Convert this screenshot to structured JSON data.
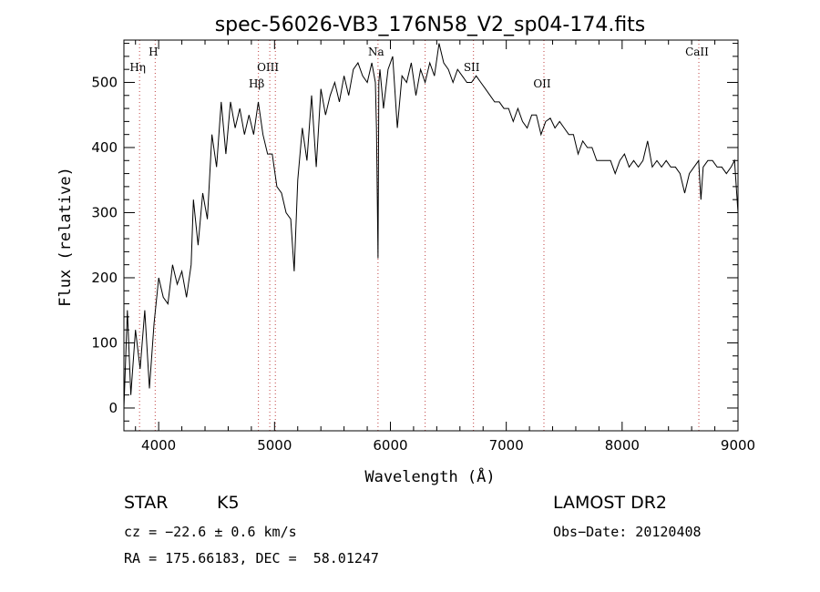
{
  "chart_data": {
    "type": "line",
    "title": "spec-56026-VB3_176N58_V2_sp04-174.fits",
    "xlabel": "Wavelength (Å)",
    "ylabel": "Flux (relative)",
    "xlim": [
      3700,
      9000
    ],
    "ylim": [
      -35,
      565
    ],
    "x_ticks": [
      4000,
      5000,
      6000,
      7000,
      8000,
      9000
    ],
    "y_ticks": [
      0,
      100,
      200,
      300,
      400,
      500
    ],
    "grid": false,
    "line_color": "#000000",
    "marker_color": "#c04040",
    "series": [
      {
        "x": [
          3700,
          3730,
          3760,
          3800,
          3840,
          3880,
          3920,
          3960,
          4000,
          4040,
          4080,
          4120,
          4160,
          4200,
          4240,
          4280,
          4300,
          4340,
          4380,
          4420,
          4460,
          4500,
          4540,
          4580,
          4620,
          4660,
          4700,
          4740,
          4780,
          4820,
          4860,
          4900,
          4940,
          4980,
          5020,
          5060,
          5100,
          5140,
          5170,
          5200,
          5240,
          5280,
          5320,
          5360,
          5400,
          5440,
          5480,
          5520,
          5560,
          5600,
          5640,
          5680,
          5720,
          5760,
          5800,
          5840,
          5870,
          5880,
          5893,
          5900,
          5910,
          5940,
          5980,
          6020,
          6060,
          6100,
          6140,
          6180,
          6220,
          6260,
          6300,
          6340,
          6380,
          6420,
          6460,
          6500,
          6540,
          6580,
          6620,
          6660,
          6700,
          6740,
          6780,
          6820,
          6860,
          6900,
          6940,
          6980,
          7020,
          7060,
          7100,
          7140,
          7180,
          7220,
          7260,
          7300,
          7340,
          7380,
          7420,
          7460,
          7500,
          7540,
          7580,
          7620,
          7660,
          7700,
          7740,
          7780,
          7820,
          7860,
          7900,
          7940,
          7980,
          8020,
          8060,
          8100,
          8140,
          8180,
          8220,
          8260,
          8300,
          8340,
          8380,
          8420,
          8460,
          8500,
          8540,
          8580,
          8620,
          8660,
          8680,
          8700,
          8740,
          8780,
          8820,
          8860,
          8900,
          8940,
          8970,
          9000
        ],
        "y": [
          0,
          150,
          20,
          120,
          60,
          150,
          30,
          130,
          200,
          170,
          160,
          220,
          190,
          210,
          170,
          220,
          320,
          250,
          330,
          290,
          420,
          370,
          470,
          390,
          470,
          430,
          460,
          420,
          450,
          420,
          470,
          420,
          390,
          390,
          340,
          330,
          300,
          290,
          210,
          350,
          430,
          380,
          480,
          370,
          490,
          450,
          480,
          500,
          470,
          510,
          480,
          520,
          530,
          510,
          500,
          530,
          500,
          430,
          230,
          500,
          520,
          460,
          520,
          540,
          430,
          510,
          500,
          530,
          480,
          520,
          500,
          530,
          510,
          560,
          530,
          520,
          500,
          520,
          510,
          500,
          500,
          510,
          500,
          490,
          480,
          470,
          470,
          460,
          460,
          440,
          460,
          440,
          430,
          450,
          450,
          420,
          440,
          445,
          430,
          440,
          430,
          420,
          420,
          390,
          410,
          400,
          400,
          380,
          380,
          380,
          380,
          360,
          380,
          390,
          370,
          380,
          370,
          380,
          410,
          370,
          380,
          370,
          380,
          370,
          370,
          360,
          330,
          360,
          370,
          380,
          320,
          370,
          380,
          380,
          370,
          370,
          360,
          370,
          380,
          300
        ]
      }
    ],
    "spectral_lines": [
      {
        "name": "Hη",
        "wavelength": 3835,
        "label_row": 2
      },
      {
        "name": "H",
        "wavelength": 3970,
        "label_row": 1
      },
      {
        "name": "Hβ",
        "wavelength": 4861,
        "label_row": 3
      },
      {
        "name": "OIII",
        "wavelength": 4959,
        "label_row": 2
      },
      {
        "name": "",
        "wavelength": 5007,
        "label_row": 0
      },
      {
        "name": "Na",
        "wavelength": 5893,
        "label_row": 1
      },
      {
        "name": "",
        "wavelength": 6300,
        "label_row": 0
      },
      {
        "name": "SII",
        "wavelength": 6717,
        "label_row": 2
      },
      {
        "name": "OII",
        "wavelength": 7325,
        "label_row": 3
      },
      {
        "name": "CaII",
        "wavelength": 8662,
        "label_row": 1
      }
    ]
  },
  "info": {
    "object_class": "STAR",
    "subclass": "K5",
    "survey": "LAMOST DR2",
    "cz": "cz = −22.6 ± 0.6 km/s",
    "obs_date": "Obs−Date: 20120408",
    "coords": "RA = 175.66183, DEC =  58.01247"
  }
}
